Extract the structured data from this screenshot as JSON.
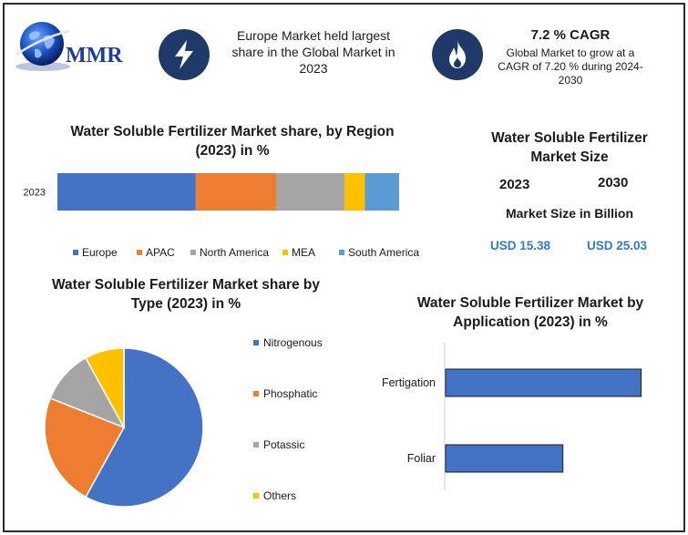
{
  "brand": {
    "logo_text": "MMR"
  },
  "colors": {
    "europe": "#4472c4",
    "apac": "#ed7d31",
    "north_america": "#a5a5a5",
    "mea": "#ffc000",
    "south_america": "#5b9bd5",
    "dark_circle": "#1f3a68",
    "usd": "#2f7cc5"
  },
  "header": {
    "icon1": "lightning-icon",
    "text1": [
      "Europe Market held largest",
      "share in the Global Market in",
      "2023"
    ],
    "icon2": "flame-icon",
    "cagr_title": "7.2 % CAGR",
    "cagr_text": [
      "Global Market to grow at a",
      "CAGR of 7.20 % during 2024-",
      "2030"
    ]
  },
  "market_size": {
    "title": [
      "Water Soluble Fertilizer",
      "Market Size"
    ],
    "year1": "2023",
    "year2": "2030",
    "unit_label": "Market Size in Billion",
    "value1": "USD 15.38",
    "value2": "USD 25.03"
  },
  "chart_data": [
    {
      "type": "bar",
      "orientation": "horizontal-stacked",
      "title": "Water Soluble Fertilizer Market share, by Region (2023) in %",
      "title_lines": [
        "Water Soluble Fertilizer Market share, by Region",
        "(2023) in %"
      ],
      "categories": [
        "2023"
      ],
      "series": [
        {
          "name": "Europe",
          "values": [
            40.5
          ]
        },
        {
          "name": "APAC",
          "values": [
            23.5
          ]
        },
        {
          "name": "North America",
          "values": [
            20
          ]
        },
        {
          "name": "MEA",
          "values": [
            6
          ]
        },
        {
          "name": "South America",
          "values": [
            10
          ]
        }
      ],
      "xlim": [
        0,
        100
      ],
      "legend": "bottom"
    },
    {
      "type": "pie",
      "title": "Water Soluble Fertilizer Market share by Type (2023) in %",
      "title_lines": [
        "Water Soluble Fertilizer Market share by",
        "Type (2023) in %"
      ],
      "categories": [
        "Nitrogenous",
        "Phosphatic",
        "Potassic",
        "Others"
      ],
      "values": [
        58,
        23,
        11,
        8
      ],
      "legend": "right"
    },
    {
      "type": "bar",
      "orientation": "horizontal",
      "title": "Water Soluble Fertilizer Market by Application (2023) in %",
      "title_lines": [
        "Water Soluble Fertilizer Market by",
        "Application (2023) in %"
      ],
      "categories": [
        "Fertigation",
        "Foliar"
      ],
      "values": [
        65,
        39
      ],
      "xlim": [
        0,
        100
      ]
    }
  ]
}
